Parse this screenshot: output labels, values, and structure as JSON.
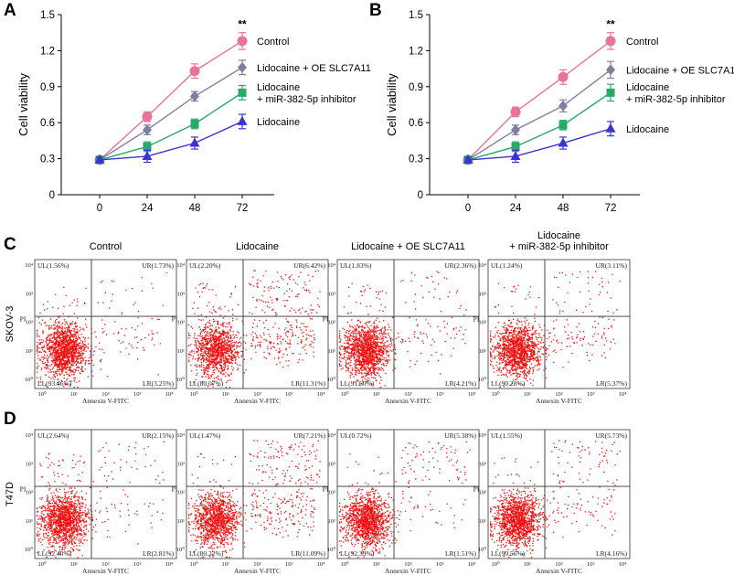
{
  "panels": {
    "A": "A",
    "B": "B",
    "C": "C",
    "D": "D"
  },
  "chart_data": [
    {
      "type": "line",
      "panel": "A",
      "ylabel": "Cell viability",
      "xlabel": "",
      "x": [
        0,
        24,
        48,
        72
      ],
      "x_tick_labels": [
        "0",
        "24",
        "48",
        "72"
      ],
      "ylim": [
        0,
        1.5
      ],
      "y_ticks": [
        0,
        0.3,
        0.6,
        0.9,
        1.2,
        1.5
      ],
      "y_tick_labels": [
        "0",
        "0.3",
        "0.6",
        "0.9",
        "1.2",
        "1.5"
      ],
      "annotation": "**",
      "series": [
        {
          "name": "Control",
          "color": "#e8739b",
          "marker": "circle",
          "values": [
            0.29,
            0.65,
            1.03,
            1.28
          ],
          "errors": [
            0.02,
            0.04,
            0.06,
            0.07
          ],
          "legend_lines": [
            "Control"
          ]
        },
        {
          "name": "Lidocaine + OE SLC7A11",
          "color": "#7f7fa3",
          "marker": "diamond",
          "values": [
            0.29,
            0.54,
            0.82,
            1.06
          ],
          "errors": [
            0.02,
            0.04,
            0.04,
            0.06
          ],
          "legend_lines": [
            "Lidocaine + OE SLC7A11"
          ]
        },
        {
          "name": "Lidocaine + miR-382-5p inhibitor",
          "color": "#27a96b",
          "marker": "square",
          "values": [
            0.29,
            0.4,
            0.59,
            0.85
          ],
          "errors": [
            0.02,
            0.04,
            0.04,
            0.06
          ],
          "legend_lines": [
            "Lidocaine",
            "+ miR-382-5p inhibitor"
          ]
        },
        {
          "name": "Lidocaine",
          "color": "#3a35d0",
          "marker": "triangle",
          "values": [
            0.29,
            0.32,
            0.43,
            0.61
          ],
          "errors": [
            0.02,
            0.05,
            0.05,
            0.06
          ],
          "legend_lines": [
            "Lidocaine"
          ]
        }
      ]
    },
    {
      "type": "line",
      "panel": "B",
      "ylabel": "Cell viability",
      "xlabel": "",
      "x": [
        0,
        24,
        48,
        72
      ],
      "x_tick_labels": [
        "0",
        "24",
        "48",
        "72"
      ],
      "ylim": [
        0,
        1.5
      ],
      "y_ticks": [
        0,
        0.3,
        0.6,
        0.9,
        1.2,
        1.5
      ],
      "y_tick_labels": [
        "0",
        "0.3",
        "0.6",
        "0.9",
        "1.2",
        "1.5"
      ],
      "annotation": "**",
      "series": [
        {
          "name": "Control",
          "color": "#e8739b",
          "marker": "circle",
          "values": [
            0.29,
            0.69,
            0.98,
            1.28
          ],
          "errors": [
            0.02,
            0.04,
            0.06,
            0.07
          ],
          "legend_lines": [
            "Control"
          ]
        },
        {
          "name": "Lidocaine + OE SLC7A11",
          "color": "#7f7fa3",
          "marker": "diamond",
          "values": [
            0.29,
            0.54,
            0.74,
            1.04
          ],
          "errors": [
            0.02,
            0.04,
            0.05,
            0.07
          ],
          "legend_lines": [
            "Lidocaine + OE SLC7A11"
          ]
        },
        {
          "name": "Lidocaine + miR-382-5p inhibitor",
          "color": "#27a96b",
          "marker": "square",
          "values": [
            0.29,
            0.4,
            0.58,
            0.85
          ],
          "errors": [
            0.02,
            0.04,
            0.04,
            0.07
          ],
          "legend_lines": [
            "Lidocaine",
            "+ miR-382-5p inhibitor"
          ]
        },
        {
          "name": "Lidocaine",
          "color": "#3a35d0",
          "marker": "triangle",
          "values": [
            0.29,
            0.32,
            0.43,
            0.55
          ],
          "errors": [
            0.02,
            0.05,
            0.05,
            0.06
          ],
          "legend_lines": [
            "Lidocaine"
          ]
        }
      ]
    },
    {
      "type": "scatter",
      "subtype": "flow-cytometry",
      "panel": "C",
      "row_label": "SKOV-3",
      "xlabel": "Annexin V-FITC",
      "ylabel": "PI",
      "x_tick_labels": [
        "10⁰",
        "10¹",
        "10²",
        "10³",
        "10⁴"
      ],
      "y_tick_labels": [
        "10⁰",
        "10¹",
        "10²",
        "10³",
        "10⁴"
      ],
      "plots": [
        {
          "title_lines": [
            "Control"
          ],
          "UL": "UL(1.56%)",
          "UR": "UR(1.73%)",
          "LL": "LL(93.46%)",
          "LR": "LR(3.25%)",
          "ll": 93.46,
          "ul": 1.56,
          "ur": 1.73,
          "lr": 3.25
        },
        {
          "title_lines": [
            "Lidocaine"
          ],
          "UL": "UL(2.20%)",
          "UR": "UR(6.42%)",
          "LL": "LL(80.07%)",
          "LR": "LR(11.31%)",
          "ll": 80.07,
          "ul": 2.2,
          "ur": 6.42,
          "lr": 11.31
        },
        {
          "title_lines": [
            "Lidocaine + OE SLC7A11"
          ],
          "UL": "UL(1.83%)",
          "UR": "UR(2.36%)",
          "LL": "LL(91.60%)",
          "LR": "LR(4.21%)",
          "ll": 91.6,
          "ul": 1.83,
          "ur": 2.36,
          "lr": 4.21
        },
        {
          "title_lines": [
            "Lidocaine",
            "+ miR-382-5p inhibitor"
          ],
          "UL": "UL(1.24%)",
          "UR": "UR(3.11%)",
          "LL": "LL(90.28%)",
          "LR": "LR(5.37%)",
          "ll": 90.28,
          "ul": 1.24,
          "ur": 3.11,
          "lr": 5.37
        }
      ]
    },
    {
      "type": "scatter",
      "subtype": "flow-cytometry",
      "panel": "D",
      "row_label": "T47D",
      "xlabel": "Annexin V-FITC",
      "ylabel": "PI",
      "x_tick_labels": [
        "10⁰",
        "10¹",
        "10²",
        "10³",
        "10⁴"
      ],
      "y_tick_labels": [
        "10⁰",
        "10¹",
        "10²",
        "10³",
        "10⁴"
      ],
      "plots": [
        {
          "title_lines": [],
          "UL": "UL(2.64%)",
          "UR": "UR(2.15%)",
          "LL": "LL(92.40%)",
          "LR": "LR(2.81%)",
          "ll": 92.4,
          "ul": 2.64,
          "ur": 2.15,
          "lr": 2.81
        },
        {
          "title_lines": [],
          "UL": "UL(1.47%)",
          "UR": "UR(7.21%)",
          "LL": "LL(80.22%)",
          "LR": "LR(11.09%)",
          "ll": 80.22,
          "ul": 1.47,
          "ur": 7.21,
          "lr": 11.09
        },
        {
          "title_lines": [],
          "UL": "UL(0.72%)",
          "UR": "UR(5.38%)",
          "LL": "LL(92.39%)",
          "LR": "LR(1.51%)",
          "ll": 92.39,
          "ul": 0.72,
          "ur": 5.38,
          "lr": 1.51
        },
        {
          "title_lines": [],
          "UL": "UL(1.55%)",
          "UR": "UR(5.73%)",
          "LL": "LL(90.56%)",
          "LR": "LR(4.16%)",
          "ll": 90.56,
          "ul": 1.55,
          "ur": 5.73,
          "lr": 4.16
        }
      ]
    }
  ]
}
